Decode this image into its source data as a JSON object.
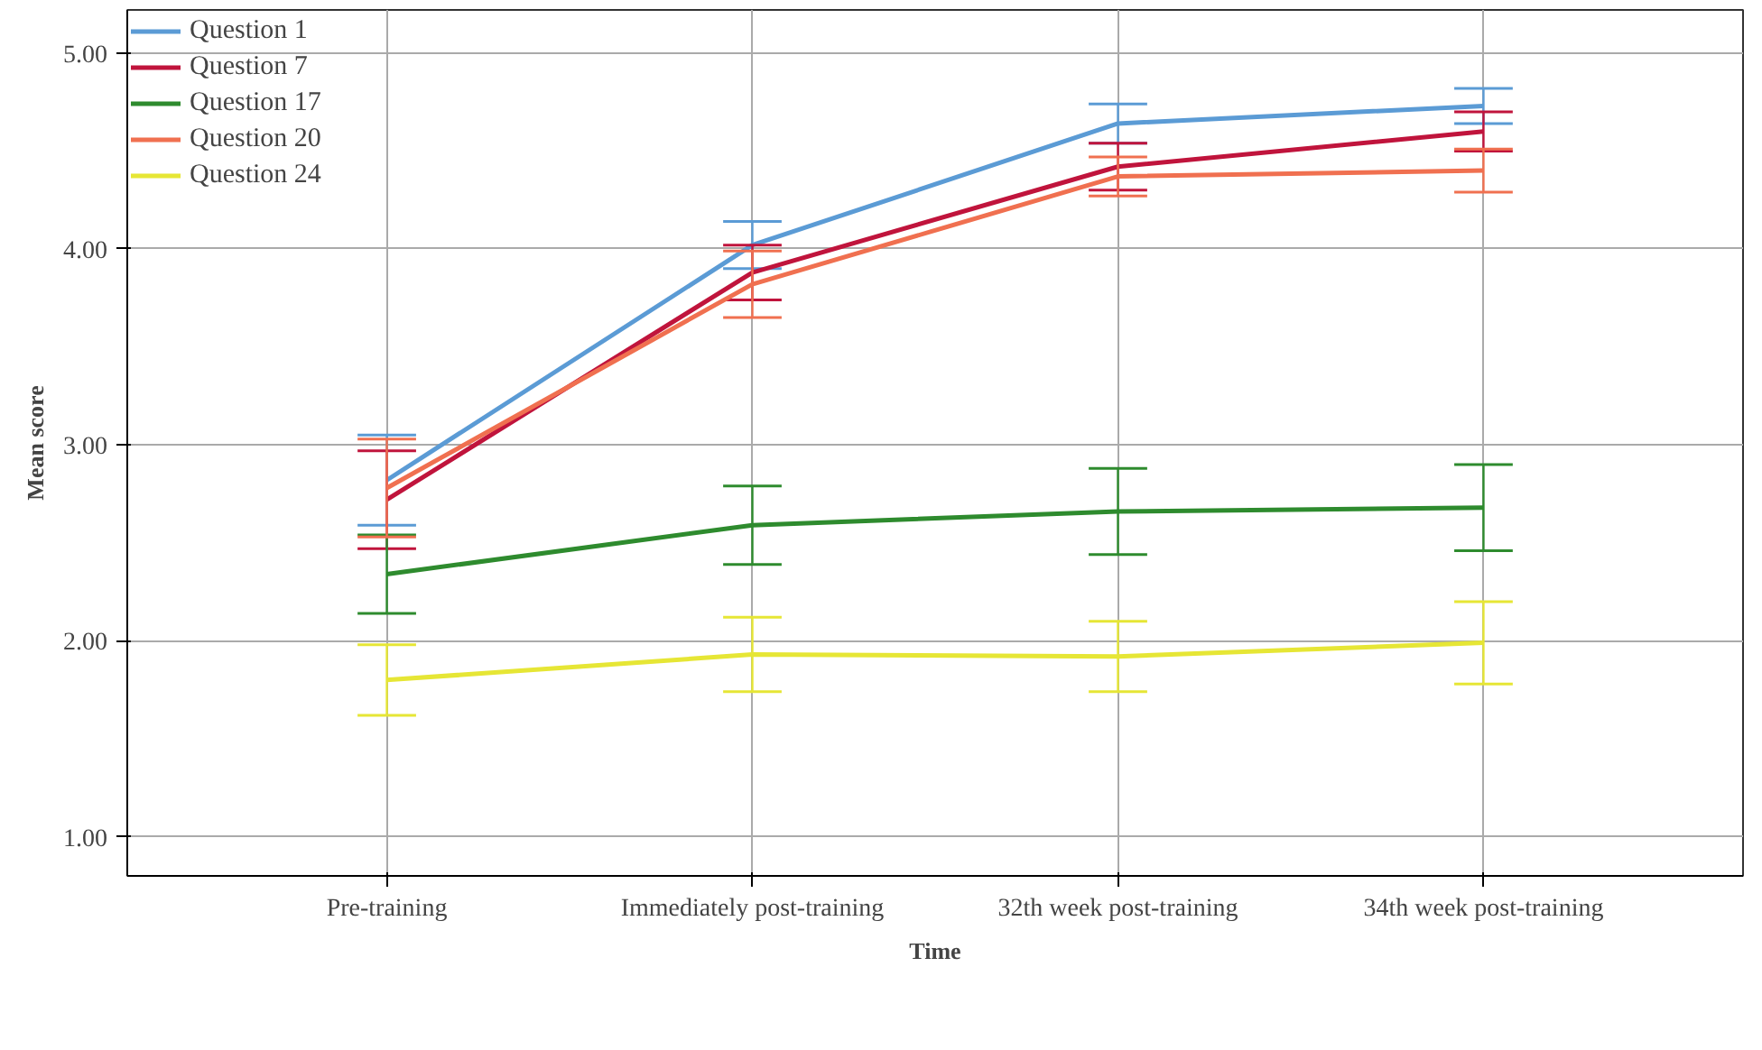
{
  "chart_data": {
    "type": "line",
    "xlabel": "Time",
    "ylabel": "Mean score",
    "categories": [
      "Pre-training",
      "Immediately post-training",
      "32th week post-training",
      "34th week post-training"
    ],
    "ylim": [
      0.8,
      5.22
    ],
    "yticks": [
      {
        "value": 1,
        "label": "1.00"
      },
      {
        "value": 2,
        "label": "2.00"
      },
      {
        "value": 3,
        "label": "3.00"
      },
      {
        "value": 4,
        "label": "4.00"
      },
      {
        "value": 5,
        "label": "5.00"
      }
    ],
    "grid": true,
    "legend": "top left",
    "line_style": "solid",
    "marker": "none",
    "series": [
      {
        "name": "Question 1",
        "color": "#5b9bd5",
        "values": [
          2.82,
          4.02,
          4.64,
          4.73
        ],
        "errors": [
          0.23,
          0.12,
          0.1,
          0.09
        ]
      },
      {
        "name": "Question 7",
        "color": "#c0143c",
        "values": [
          2.72,
          3.88,
          4.42,
          4.6
        ],
        "errors": [
          0.25,
          0.14,
          0.12,
          0.1
        ]
      },
      {
        "name": "Question 17",
        "color": "#2e8b2e",
        "values": [
          2.34,
          2.59,
          2.66,
          2.68
        ],
        "errors": [
          0.2,
          0.2,
          0.22,
          0.22
        ]
      },
      {
        "name": "Question 20",
        "color": "#f07050",
        "values": [
          2.78,
          3.82,
          4.37,
          4.4
        ],
        "errors": [
          0.25,
          0.17,
          0.1,
          0.11
        ]
      },
      {
        "name": "Question 24",
        "color": "#e6e635",
        "values": [
          1.8,
          1.93,
          1.92,
          1.99
        ],
        "errors": [
          0.18,
          0.19,
          0.18,
          0.21
        ]
      }
    ]
  }
}
